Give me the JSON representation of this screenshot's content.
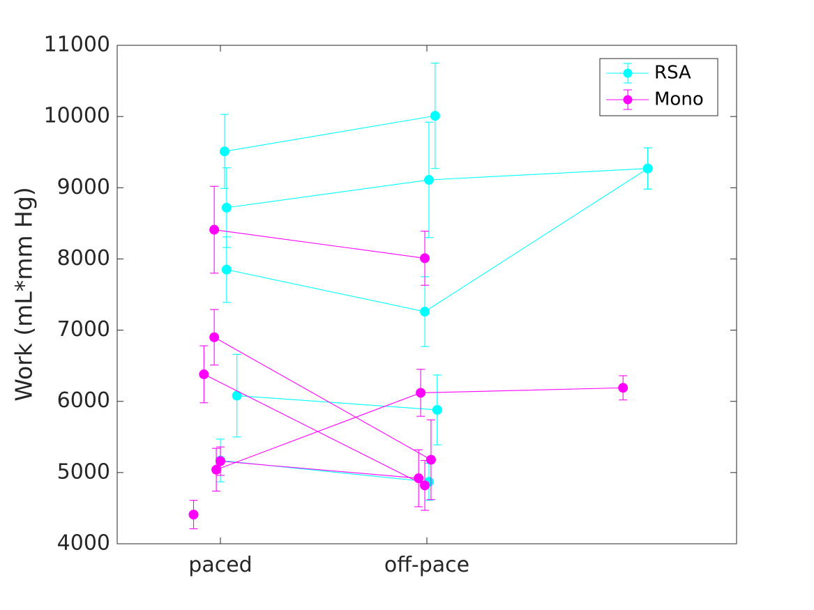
{
  "chart_data": {
    "type": "scatter",
    "ylabel": "Work (mL*mm Hg)",
    "xlabel": "",
    "title": "",
    "ylim": [
      4000,
      11000
    ],
    "yticks": [
      4000,
      5000,
      6000,
      7000,
      8000,
      9000,
      10000,
      11000
    ],
    "xlim": [
      0.5,
      3.5
    ],
    "xticks": [
      {
        "value": 1,
        "label": "paced"
      },
      {
        "value": 2,
        "label": "off-pace"
      }
    ],
    "grid": false,
    "legend_position": "top-right",
    "series": [
      {
        "name": "RSA",
        "color": "#00FFFF",
        "lines": [
          {
            "points": [
              {
                "x": 1.02,
                "y": 9510,
                "err": 520
              },
              {
                "x": 2.04,
                "y": 10010,
                "err": 740
              }
            ]
          },
          {
            "points": [
              {
                "x": 1.03,
                "y": 8720,
                "err": 560
              },
              {
                "x": 2.01,
                "y": 9110,
                "err": 810
              },
              {
                "x": 3.07,
                "y": 9270,
                "err": 290
              }
            ]
          },
          {
            "points": [
              {
                "x": 1.03,
                "y": 7850,
                "err": 460
              },
              {
                "x": 1.99,
                "y": 7260,
                "err": 490
              },
              {
                "x": 3.07,
                "y": 9270,
                "err": 290
              }
            ]
          },
          {
            "points": [
              {
                "x": 1.08,
                "y": 6080,
                "err": 580
              },
              {
                "x": 2.05,
                "y": 5880,
                "err": 490
              }
            ]
          },
          {
            "points": [
              {
                "x": 1.0,
                "y": 5170,
                "err": 300
              },
              {
                "x": 2.01,
                "y": 4870,
                "err": 260
              }
            ]
          }
        ]
      },
      {
        "name": "Mono",
        "color": "#FF00FF",
        "lines": [
          {
            "points": [
              {
                "x": 0.97,
                "y": 8410,
                "err": 610
              },
              {
                "x": 1.99,
                "y": 8010,
                "err": 380
              }
            ]
          },
          {
            "points": [
              {
                "x": 0.97,
                "y": 6900,
                "err": 390
              },
              {
                "x": 2.02,
                "y": 5180,
                "err": 560
              }
            ]
          },
          {
            "points": [
              {
                "x": 0.92,
                "y": 6380,
                "err": 400
              },
              {
                "x": 1.99,
                "y": 4820,
                "err": 350
              }
            ]
          },
          {
            "points": [
              {
                "x": 0.98,
                "y": 5040,
                "err": 300
              },
              {
                "x": 1.97,
                "y": 6120,
                "err": 330
              },
              {
                "x": 2.95,
                "y": 6190,
                "err": 170
              }
            ]
          },
          {
            "points": [
              {
                "x": 1.0,
                "y": 5160,
                "err": 200
              },
              {
                "x": 1.96,
                "y": 4920,
                "err": 400
              }
            ]
          },
          {
            "points": [
              {
                "x": 0.87,
                "y": 4410,
                "err": 200
              }
            ]
          }
        ]
      }
    ]
  }
}
